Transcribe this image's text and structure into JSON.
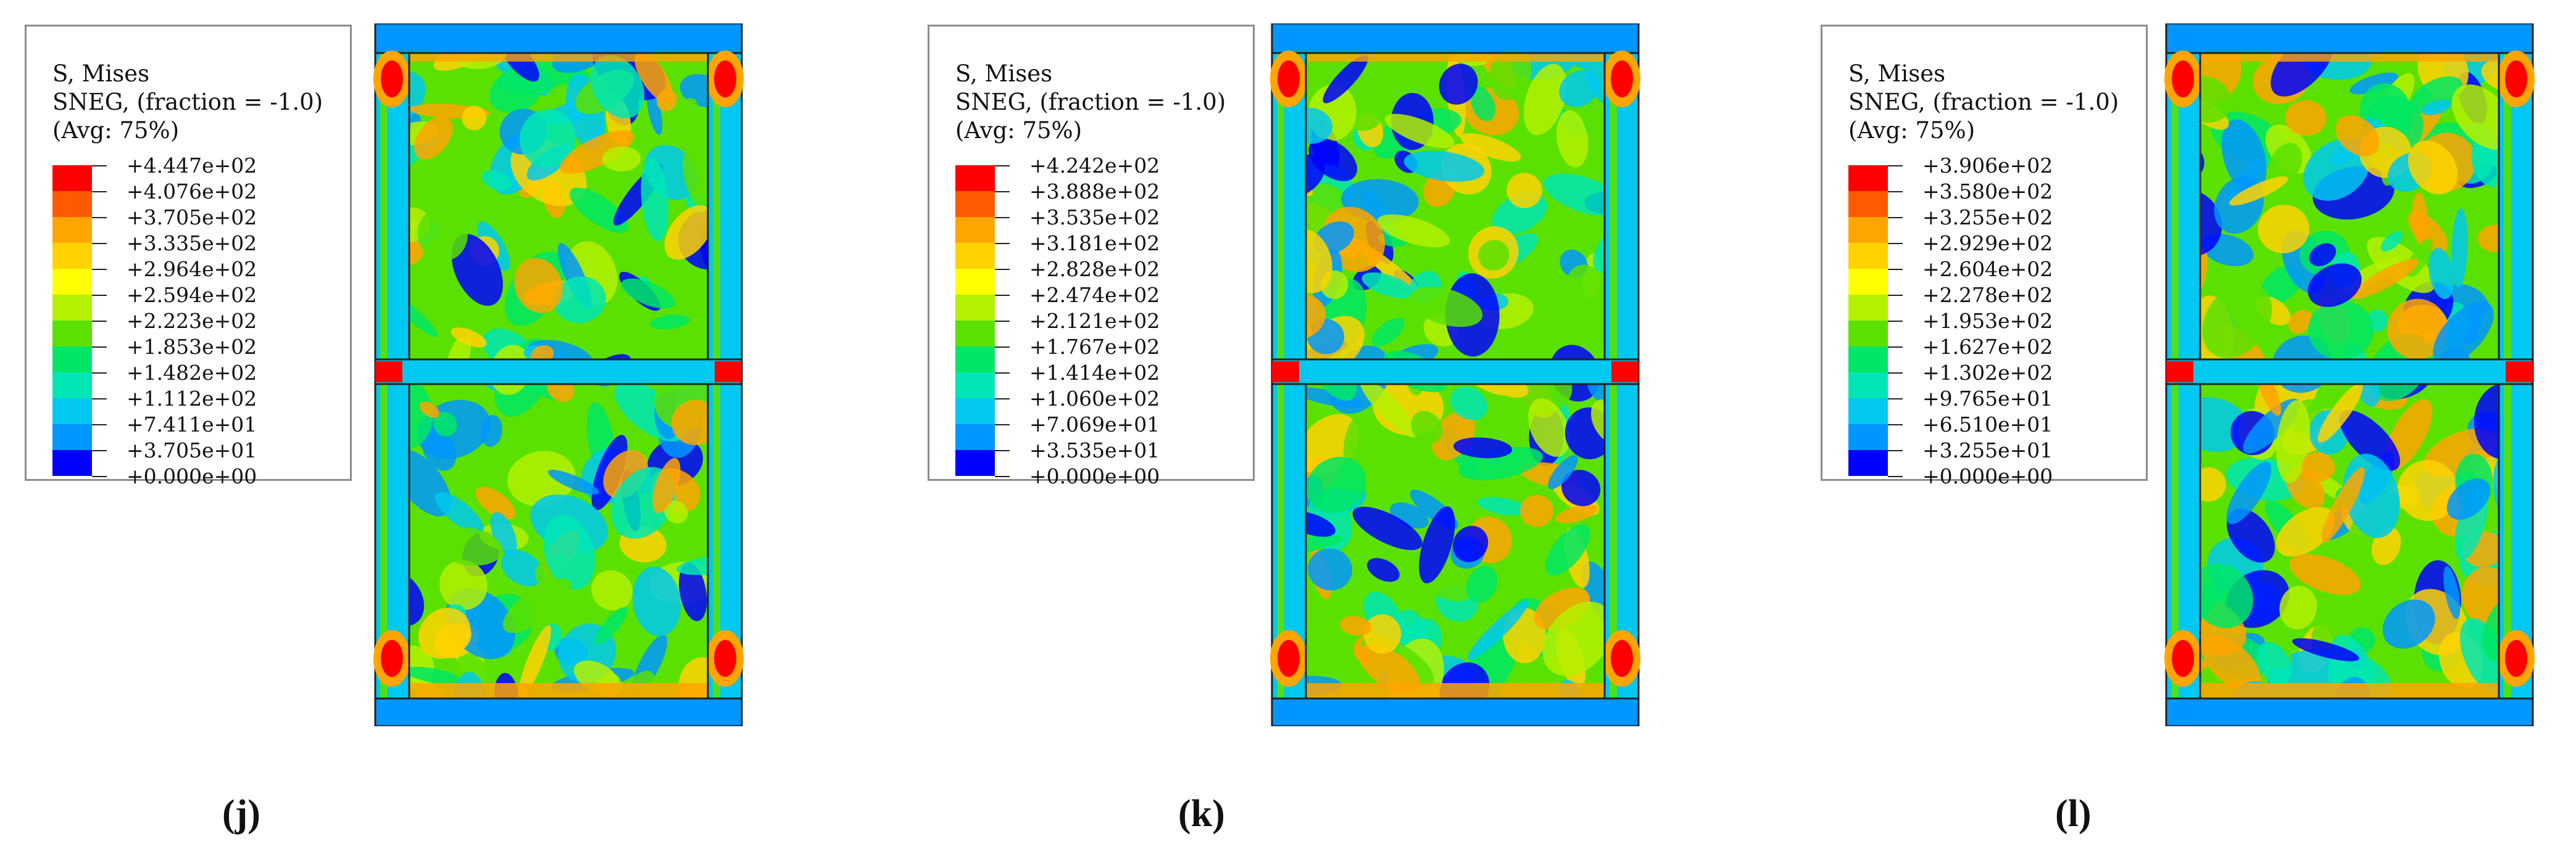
{
  "panels": [
    {
      "caption": "(j)",
      "legend": {
        "title_lines": [
          "S, Mises",
          "SNEG, (fraction = -1.0)",
          "(Avg: 75%)"
        ],
        "values": [
          "+4.447e+02",
          "+4.076e+02",
          "+3.705e+02",
          "+3.335e+02",
          "+2.964e+02",
          "+2.594e+02",
          "+2.223e+02",
          "+1.853e+02",
          "+1.482e+02",
          "+1.112e+02",
          "+7.411e+01",
          "+3.705e+01",
          "+0.000e+00"
        ]
      }
    },
    {
      "caption": "(k)",
      "legend": {
        "title_lines": [
          "S, Mises",
          "SNEG, (fraction = -1.0)",
          "(Avg: 75%)"
        ],
        "values": [
          "+4.242e+02",
          "+3.888e+02",
          "+3.535e+02",
          "+3.181e+02",
          "+2.828e+02",
          "+2.474e+02",
          "+2.121e+02",
          "+1.767e+02",
          "+1.414e+02",
          "+1.060e+02",
          "+7.069e+01",
          "+3.535e+01",
          "+0.000e+00"
        ]
      }
    },
    {
      "caption": "(l)",
      "legend": {
        "title_lines": [
          "S, Mises",
          "SNEG, (fraction = -1.0)",
          "(Avg: 75%)"
        ],
        "values": [
          "+3.906e+02",
          "+3.580e+02",
          "+3.255e+02",
          "+2.929e+02",
          "+2.604e+02",
          "+2.278e+02",
          "+1.953e+02",
          "+1.627e+02",
          "+1.302e+02",
          "+9.765e+01",
          "+6.510e+01",
          "+3.255e+01",
          "+0.000e+00"
        ]
      }
    }
  ],
  "colormap": [
    "#ff0000",
    "#ff5a00",
    "#ffa500",
    "#ffd200",
    "#ffff00",
    "#b4f000",
    "#5ae100",
    "#00e664",
    "#00e6b4",
    "#00c8f0",
    "#0096ff",
    "#0000ff"
  ]
}
